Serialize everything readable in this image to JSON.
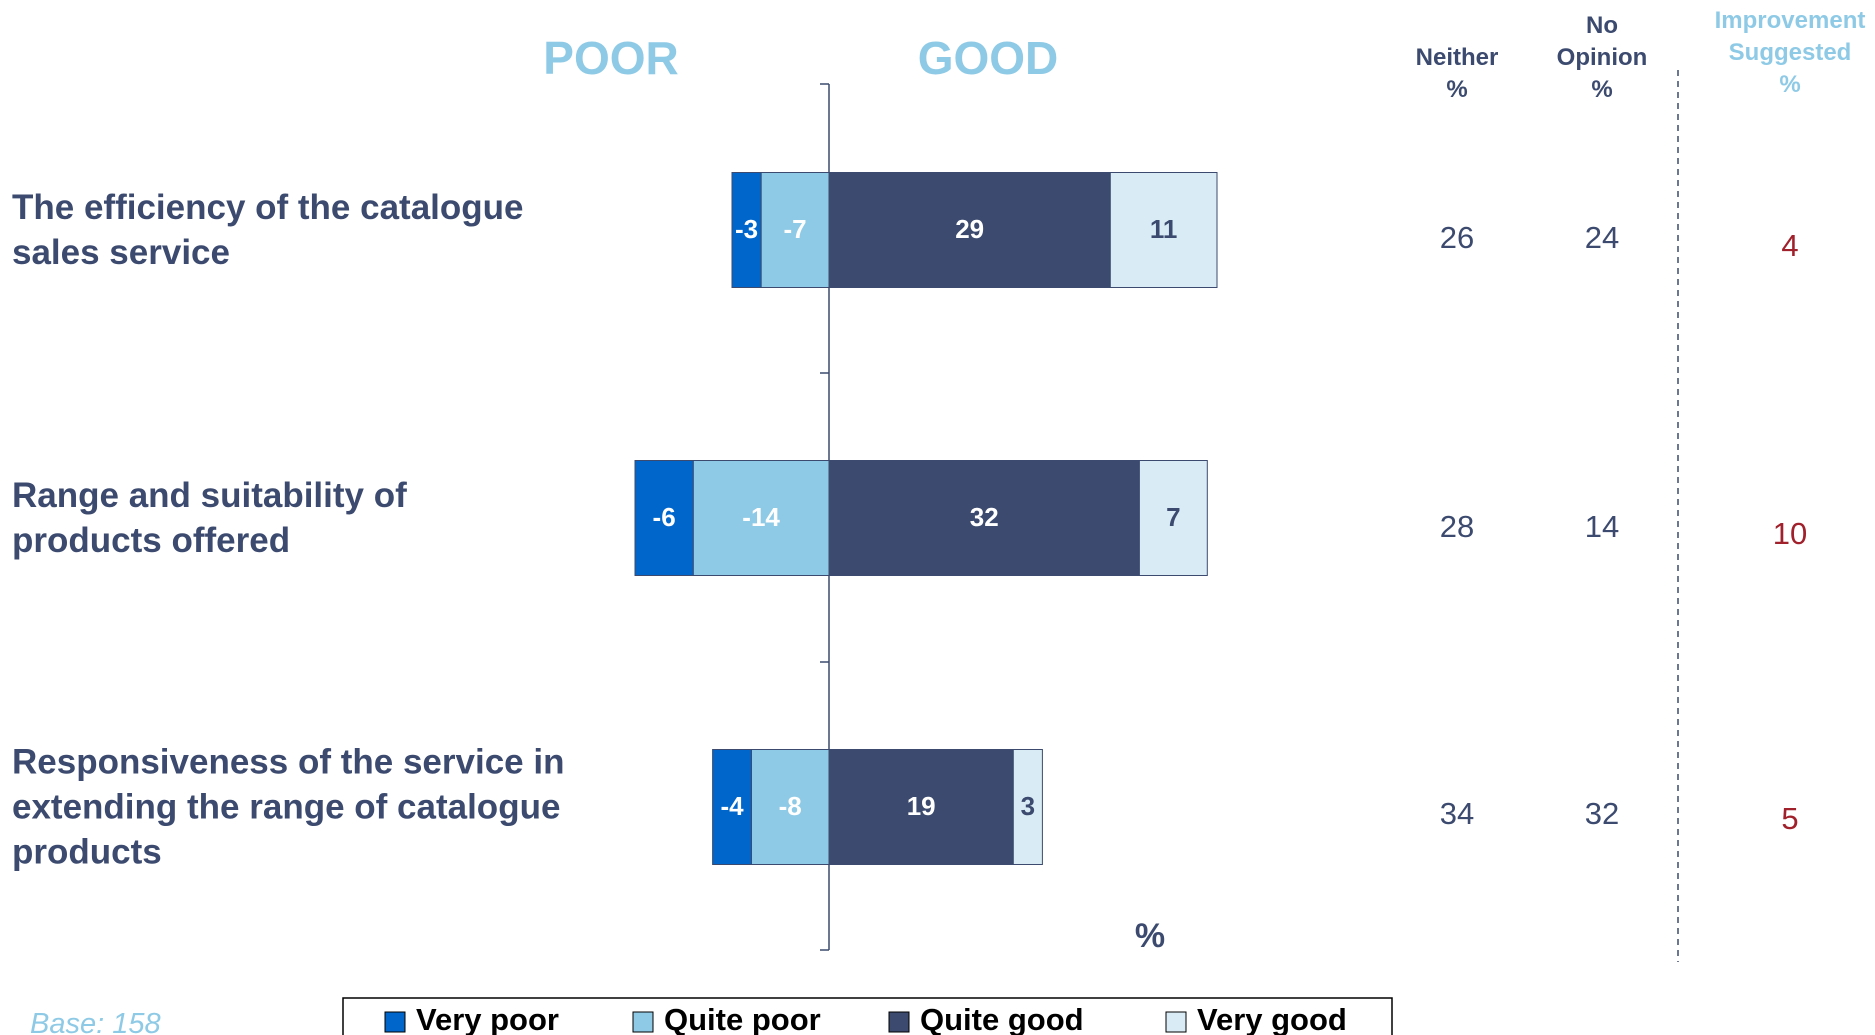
{
  "chart_data": {
    "type": "diverging_bar",
    "left_heading": "POOR",
    "right_heading": "GOOD",
    "axis_unit": "%",
    "categories": [
      "The efficiency of the catalogue\nsales service",
      "Range and suitability of\nproducts offered",
      "Responsiveness of the service in\nextending the range of catalogue\nproducts"
    ],
    "series": [
      {
        "name": "Very poor",
        "color": "#0066cc",
        "label_color": "#ffffff",
        "values": [
          -3,
          -6,
          -4
        ]
      },
      {
        "name": "Quite poor",
        "color": "#8ecae6",
        "label_color": "#ffffff",
        "values": [
          -7,
          -14,
          -8
        ]
      },
      {
        "name": "Quite good",
        "color": "#3b4a6e",
        "label_color": "#ffffff",
        "values": [
          29,
          32,
          19
        ]
      },
      {
        "name": "Very good",
        "color": "#d9ecf6",
        "label_color": "#3b4a6e",
        "values": [
          11,
          7,
          3
        ]
      }
    ],
    "columns": [
      {
        "header": "Neither\n%",
        "header_color": "#3b4a6e",
        "color": "#3b4a6e",
        "values": [
          26,
          28,
          34
        ]
      },
      {
        "header": "No\nOpinion\n%",
        "header_color": "#3b4a6e",
        "color": "#3b4a6e",
        "values": [
          24,
          14,
          32
        ]
      },
      {
        "header": "Improvement\nSuggested\n%",
        "header_color": "#8ecae6",
        "color": "#a0212b",
        "values": [
          4,
          10,
          5
        ]
      }
    ],
    "footnote": "Base: 158"
  }
}
